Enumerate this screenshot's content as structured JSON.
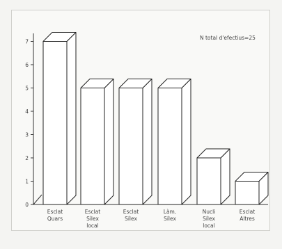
{
  "chart_data": {
    "type": "bar",
    "title": "",
    "annotation": "N total d'efectius=25",
    "xlabel": "",
    "ylabel": "",
    "ylim": [
      0,
      7
    ],
    "yticks": [
      "0",
      "1",
      "2",
      "3",
      "4",
      "5",
      "6",
      "7"
    ],
    "grid": false,
    "style": "3d",
    "categories": [
      [
        "Esclat",
        "Quars"
      ],
      [
        "Esclat",
        "Sílex",
        "local"
      ],
      [
        "Esclat",
        "Sílex"
      ],
      [
        "Làm.",
        "Sílex"
      ],
      [
        "Nucli",
        "Sílex",
        "local"
      ],
      [
        "Esclat",
        "Altres"
      ]
    ],
    "values": [
      7,
      5,
      5,
      5,
      2,
      1
    ]
  }
}
